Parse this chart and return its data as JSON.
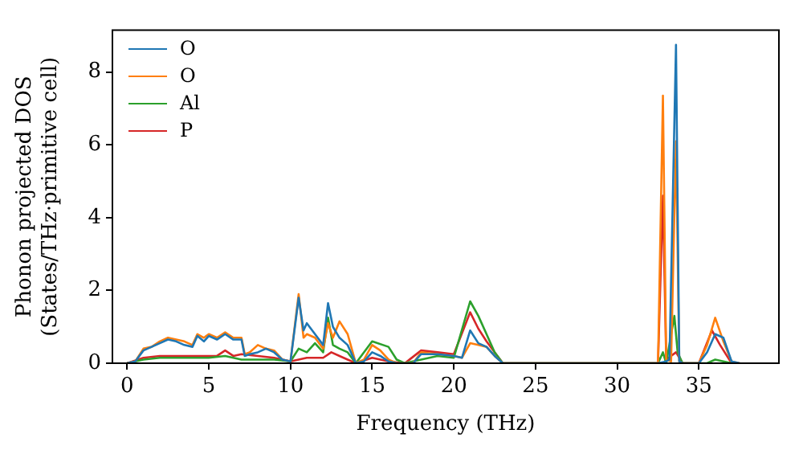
{
  "chart_data": {
    "type": "line",
    "xlabel": "Frequency (THz)",
    "ylabel": "Phonon projected DOS\n(States/THz·primitive cell)",
    "xlim": [
      -0.9,
      39.9
    ],
    "ylim": [
      0,
      9.15
    ],
    "xticks": [
      0,
      5,
      10,
      15,
      20,
      25,
      30,
      35
    ],
    "yticks": [
      0,
      2,
      4,
      6,
      8
    ],
    "grid": false,
    "legend": "top left",
    "marker": "none",
    "line_style": "solid",
    "series": [
      {
        "name": "O",
        "color": "#1f77b4",
        "x": [
          0,
          0.5,
          1,
          1.5,
          2,
          2.5,
          3,
          3.5,
          4,
          4.3,
          4.7,
          5,
          5.5,
          6,
          6.5,
          7,
          7.2,
          7.5,
          8,
          8.5,
          9,
          9.5,
          10,
          10.5,
          10.8,
          11,
          11.5,
          12,
          12.3,
          12.6,
          13,
          13.5,
          14,
          14.5,
          15,
          15.5,
          16,
          16.5,
          17.5,
          18,
          19,
          20,
          20.5,
          21,
          21.5,
          22,
          22.5,
          23,
          32.5,
          33,
          33.2,
          33.6,
          33.8,
          34,
          35,
          35.5,
          36,
          36.5,
          37,
          37.5
        ],
        "values": [
          0,
          0.05,
          0.35,
          0.45,
          0.55,
          0.65,
          0.6,
          0.5,
          0.45,
          0.75,
          0.6,
          0.75,
          0.65,
          0.8,
          0.65,
          0.65,
          0.2,
          0.25,
          0.3,
          0.4,
          0.3,
          0.1,
          0.05,
          1.8,
          0.9,
          1.1,
          0.8,
          0.5,
          1.65,
          1.0,
          0.7,
          0.5,
          0,
          0.05,
          0.3,
          0.2,
          0.05,
          0,
          0,
          0.25,
          0.25,
          0.2,
          0.15,
          0.9,
          0.55,
          0.45,
          0.2,
          0,
          0,
          0.05,
          0.1,
          8.75,
          0.05,
          0,
          0,
          0.3,
          0.8,
          0.7,
          0.05,
          0
        ]
      },
      {
        "name": "O",
        "color": "#ff7f0e",
        "x": [
          0,
          0.5,
          1,
          1.5,
          2,
          2.5,
          3,
          3.5,
          4,
          4.3,
          4.7,
          5,
          5.5,
          6,
          6.5,
          7,
          7.2,
          7.5,
          8,
          8.5,
          9,
          9.5,
          10,
          10.5,
          10.8,
          11,
          11.5,
          12,
          12.3,
          12.6,
          13,
          13.5,
          14,
          14.5,
          15,
          15.5,
          16,
          16.5,
          17.5,
          18,
          19,
          20,
          20.5,
          21,
          21.5,
          22,
          22.5,
          23,
          32.5,
          32.8,
          33,
          33.3,
          33.6,
          33.8,
          34,
          35,
          35.5,
          36,
          36.5,
          37,
          37.5
        ],
        "values": [
          0,
          0.05,
          0.4,
          0.45,
          0.6,
          0.7,
          0.65,
          0.6,
          0.5,
          0.8,
          0.7,
          0.8,
          0.7,
          0.85,
          0.7,
          0.7,
          0.25,
          0.3,
          0.5,
          0.4,
          0.35,
          0.1,
          0.05,
          1.9,
          0.7,
          0.8,
          0.7,
          0.4,
          1.1,
          0.7,
          1.15,
          0.8,
          0,
          0.1,
          0.5,
          0.35,
          0.1,
          0,
          0,
          0.3,
          0.25,
          0.2,
          0.15,
          0.55,
          0.5,
          0.45,
          0.2,
          0,
          0,
          7.35,
          0.1,
          0.05,
          6.1,
          0.05,
          0,
          0,
          0.5,
          1.25,
          0.6,
          0.05,
          0
        ]
      },
      {
        "name": "Al",
        "color": "#2ca02c",
        "x": [
          0,
          1,
          2,
          3,
          4,
          5,
          6,
          7,
          8,
          9,
          10,
          10.5,
          11,
          11.5,
          12,
          12.3,
          12.6,
          13,
          13.5,
          14,
          15,
          16,
          16.5,
          17,
          18,
          19,
          20,
          21,
          21.5,
          22,
          22.5,
          23,
          32.5,
          32.8,
          33,
          33.5,
          33.7,
          34,
          35.5,
          36,
          36.5,
          37
        ],
        "values": [
          0,
          0.1,
          0.15,
          0.15,
          0.15,
          0.15,
          0.2,
          0.1,
          0.1,
          0.1,
          0.05,
          0.4,
          0.3,
          0.55,
          0.3,
          1.25,
          0.5,
          0.4,
          0.3,
          0,
          0.6,
          0.45,
          0.1,
          0,
          0.1,
          0.2,
          0.15,
          1.7,
          1.3,
          0.8,
          0.3,
          0,
          0,
          0.3,
          0,
          1.3,
          0.3,
          0,
          0,
          0.1,
          0.05,
          0
        ]
      },
      {
        "name": "P",
        "color": "#d62728",
        "x": [
          0,
          1,
          2,
          3,
          4,
          5,
          5.5,
          6,
          6.5,
          7,
          8,
          9,
          10,
          11,
          12,
          12.5,
          13,
          13.5,
          14,
          15,
          16,
          17,
          18,
          19,
          20,
          21,
          21.5,
          22,
          22.5,
          23,
          32.5,
          32.8,
          33,
          33.6,
          34,
          35,
          35.8,
          36.3,
          37
        ],
        "values": [
          0,
          0.15,
          0.2,
          0.2,
          0.2,
          0.2,
          0.2,
          0.35,
          0.2,
          0.25,
          0.2,
          0.15,
          0.05,
          0.15,
          0.15,
          0.3,
          0.2,
          0.1,
          0,
          0.15,
          0.05,
          0,
          0.35,
          0.3,
          0.25,
          1.4,
          0.95,
          0.6,
          0.3,
          0,
          0,
          4.6,
          0.1,
          0.3,
          0,
          0,
          0.9,
          0.5,
          0
        ]
      }
    ]
  }
}
